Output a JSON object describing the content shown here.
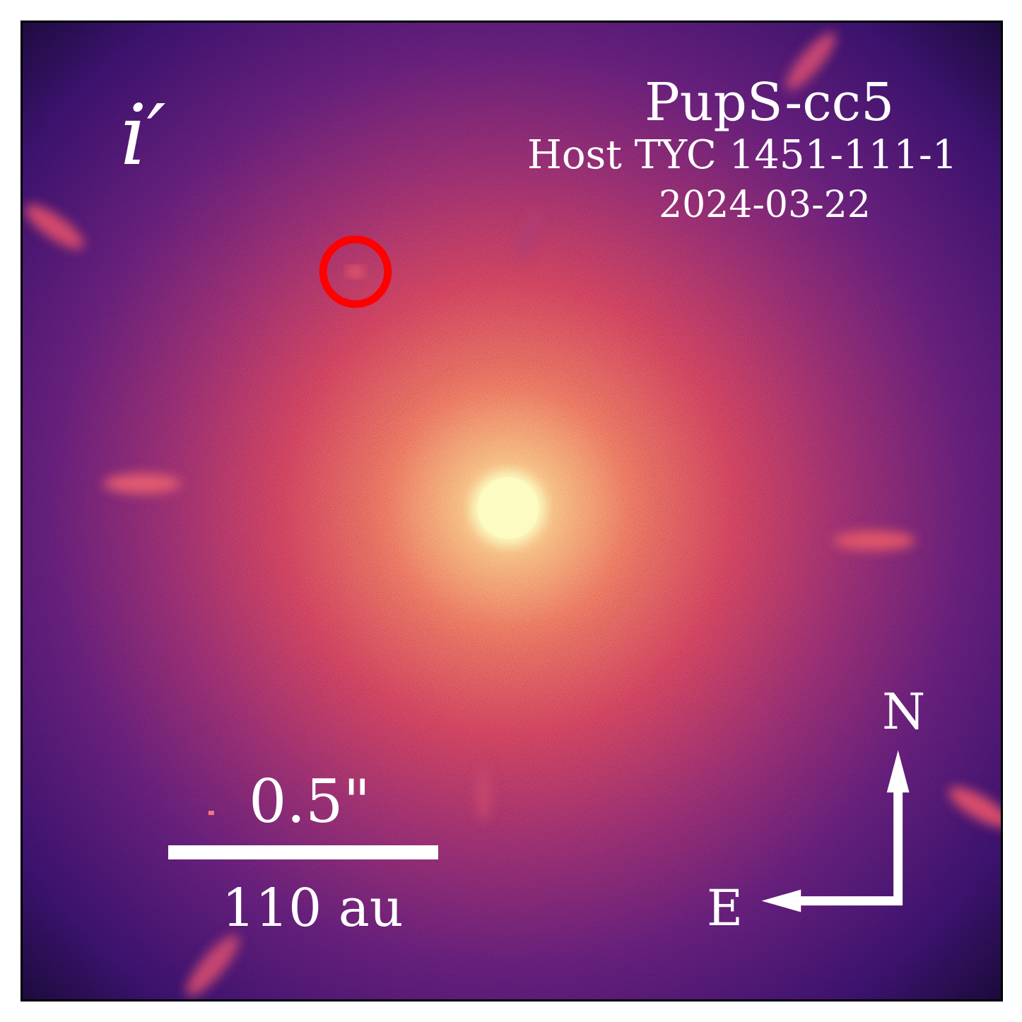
{
  "image": {
    "description_tags": [
      "astronomical image",
      "coronagraphic",
      "magma colormap"
    ],
    "filter_label": "i′",
    "target": "PupS-cc5",
    "host": "Host TYC 1451-111-1",
    "date": "2024-03-22",
    "scale_bar": {
      "angular": "0.5\"",
      "physical": "110 au"
    },
    "compass": {
      "north": "N",
      "east": "E"
    },
    "colors": {
      "background": "#1a0b3a",
      "halo": "#e0506a",
      "core": "#fbf8be",
      "marker": "#ff0000",
      "text": "#ffffff"
    }
  }
}
